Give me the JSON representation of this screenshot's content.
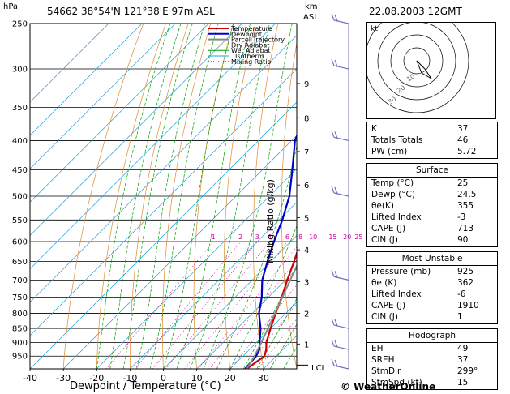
{
  "header": {
    "station": "54662  38°54'N  121°38'E   97m  ASL",
    "datetime": "22.08.2003  12GMT",
    "pressure_unit": "hPa",
    "km_label": "km",
    "asl_label": "ASL"
  },
  "chart_data": {
    "type": "line",
    "title": "",
    "xlabel": "Dewpoint / Temperature (°C)",
    "ylabel": "",
    "secondary_ylabel": "Mixing Ratio (g/kg)",
    "xlim": [
      -40,
      40
    ],
    "ylim": [
      1000,
      250
    ],
    "y_scale": "log",
    "skew": "45°",
    "x_ticks": [
      -40,
      -30,
      -20,
      -10,
      0,
      10,
      20,
      30
    ],
    "pressure_ticks": [
      250,
      300,
      350,
      400,
      450,
      500,
      550,
      600,
      650,
      700,
      750,
      800,
      850,
      900,
      950
    ],
    "km_ticks": [
      {
        "km": 1,
        "p": 905
      },
      {
        "km": 2,
        "p": 800
      },
      {
        "km": 3,
        "p": 705
      },
      {
        "km": 4,
        "p": 620
      },
      {
        "km": 5,
        "p": 545
      },
      {
        "km": 6,
        "p": 478
      },
      {
        "km": 7,
        "p": 418
      },
      {
        "km": 8,
        "p": 365
      },
      {
        "km": 9,
        "p": 318
      }
    ],
    "lcl_label": "LCL",
    "lcl_p": 985,
    "mixing_ratio_labels": [
      "1",
      "2",
      "3",
      "4",
      "6",
      "8",
      "10",
      "15",
      "20",
      "25"
    ],
    "mixing_ratio_values": [
      1,
      2,
      3,
      4,
      6,
      8,
      10,
      15,
      20,
      25
    ],
    "legend": [
      "Temperature",
      "Dewpoint",
      "Parcel Trajectory",
      "Dry Adiabat",
      "Wet Adiabat",
      "Isotherm",
      "Mixing Ratio"
    ],
    "legend_position": "top",
    "series": [
      {
        "name": "Temperature",
        "points": [
          [
            1000,
            25
          ],
          [
            950,
            26.5
          ],
          [
            925,
            25
          ],
          [
            900,
            23
          ],
          [
            850,
            20
          ],
          [
            800,
            17
          ],
          [
            750,
            14
          ],
          [
            700,
            10.5
          ],
          [
            650,
            7
          ],
          [
            600,
            3
          ],
          [
            550,
            -1
          ],
          [
            500,
            -5
          ],
          [
            450,
            -10
          ],
          [
            400,
            -16
          ],
          [
            350,
            -23
          ],
          [
            300,
            -32
          ],
          [
            250,
            -42
          ]
        ]
      },
      {
        "name": "Dewpoint",
        "points": [
          [
            1000,
            24.5
          ],
          [
            950,
            24
          ],
          [
            925,
            23
          ],
          [
            900,
            21
          ],
          [
            850,
            17
          ],
          [
            800,
            12
          ],
          [
            750,
            8
          ],
          [
            700,
            3
          ],
          [
            650,
            -1
          ],
          [
            600,
            -5
          ],
          [
            550,
            -9
          ],
          [
            500,
            -14
          ],
          [
            450,
            -21
          ],
          [
            400,
            -29
          ],
          [
            350,
            -35
          ],
          [
            300,
            -42
          ],
          [
            250,
            -52
          ]
        ]
      },
      {
        "name": "Parcel Trajectory",
        "points": [
          [
            1000,
            25
          ],
          [
            950,
            23.5
          ],
          [
            900,
            21.5
          ],
          [
            850,
            19.2
          ],
          [
            800,
            16.8
          ],
          [
            750,
            14.2
          ],
          [
            700,
            11.4
          ],
          [
            650,
            8.4
          ],
          [
            600,
            5
          ],
          [
            550,
            1.4
          ],
          [
            500,
            -2.8
          ],
          [
            450,
            -7.8
          ],
          [
            400,
            -13.6
          ],
          [
            350,
            -20.6
          ],
          [
            300,
            -29.4
          ],
          [
            250,
            -40.5
          ]
        ]
      }
    ],
    "wind_barbs": [
      250,
      300,
      400,
      500,
      700,
      850,
      925,
      1000
    ]
  },
  "hodograph": {
    "unit_label": "kt",
    "ring_labels": [
      "10",
      "20",
      "30"
    ]
  },
  "indices": {
    "basic": [
      {
        "label": "K",
        "value": "37"
      },
      {
        "label": "Totals Totals",
        "value": "46"
      },
      {
        "label": "PW (cm)",
        "value": "5.72"
      }
    ],
    "surface": {
      "title": "Surface",
      "rows": [
        {
          "label": "Temp (°C)",
          "value": "25"
        },
        {
          "label": "Dewp (°C)",
          "value": "24.5"
        },
        {
          "label": "θe(K)",
          "value": "355"
        },
        {
          "label": "Lifted Index",
          "value": "-3"
        },
        {
          "label": "CAPE (J)",
          "value": "713"
        },
        {
          "label": "CIN (J)",
          "value": "90"
        }
      ]
    },
    "most_unstable": {
      "title": "Most Unstable",
      "rows": [
        {
          "label": "Pressure (mb)",
          "value": "925"
        },
        {
          "label": "θe (K)",
          "value": "362"
        },
        {
          "label": "Lifted Index",
          "value": "-6"
        },
        {
          "label": "CAPE (J)",
          "value": "1910"
        },
        {
          "label": "CIN (J)",
          "value": "1"
        }
      ]
    },
    "hodograph": {
      "title": "Hodograph",
      "rows": [
        {
          "label": "EH",
          "value": "49"
        },
        {
          "label": "SREH",
          "value": "37"
        },
        {
          "label": "StmDir",
          "value": "299°"
        },
        {
          "label": "StmSpd (kt)",
          "value": "15"
        }
      ]
    }
  },
  "brand": "© WeatherOnline",
  "colors": {
    "temperature": "#cc0000",
    "dewpoint": "#0000cc",
    "parcel": "#888888",
    "dry_adiabat": "#e08a2a",
    "wet_adiabat": "#00a000",
    "isotherm": "#20a0d0",
    "mixing_ratio": "#d000a0",
    "wind": "#7070c0"
  }
}
